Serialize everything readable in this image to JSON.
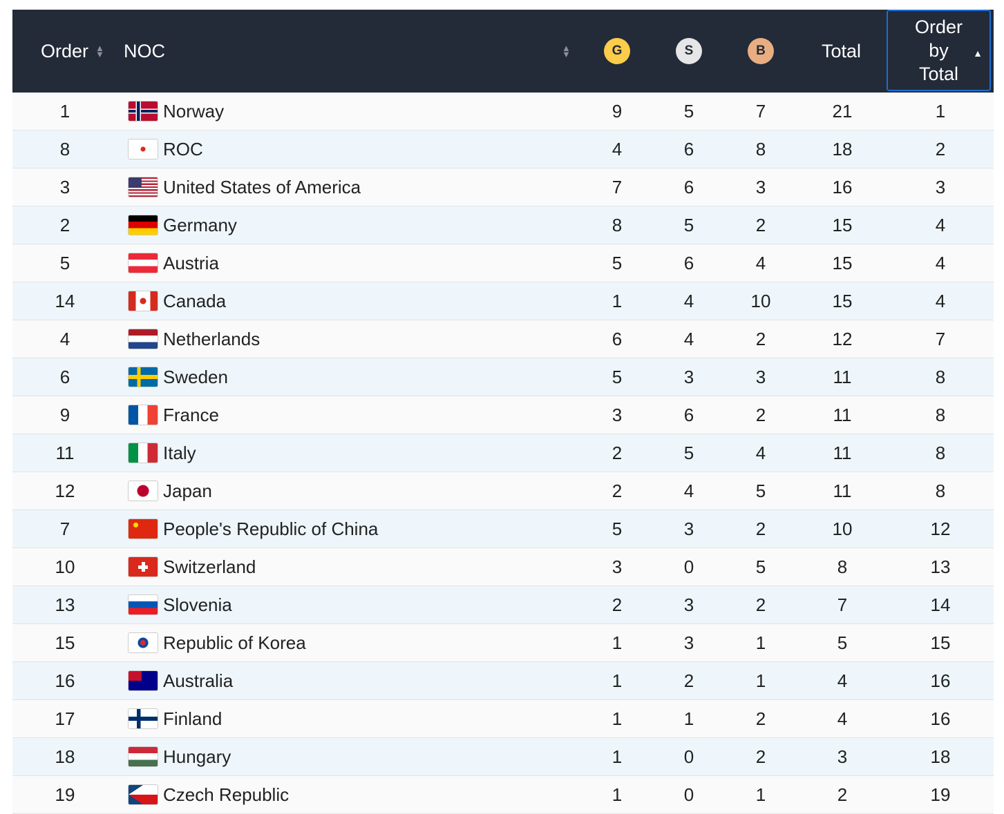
{
  "header": {
    "order_label": "Order",
    "noc_label": "NOC",
    "gold_label": "G",
    "silver_label": "S",
    "bronze_label": "B",
    "total_label": "Total",
    "order_by_total_lines": [
      "Order",
      "by",
      "Total"
    ],
    "sort_icon": "sort-both-icon",
    "active_sort_icon": "sort-ascending-icon"
  },
  "colors": {
    "header_bg": "#232a38",
    "gold": "#fccc4a",
    "silver": "#e6e6e6",
    "bronze": "#e8ae82",
    "active_border": "#1a6fd6"
  },
  "rows": [
    {
      "order": "1",
      "flag": "norway",
      "noc": "Norway",
      "g": "9",
      "s": "5",
      "b": "7",
      "total": "21",
      "rank": "1"
    },
    {
      "order": "8",
      "flag": "roc",
      "noc": "ROC",
      "g": "4",
      "s": "6",
      "b": "8",
      "total": "18",
      "rank": "2"
    },
    {
      "order": "3",
      "flag": "usa",
      "noc": "United States of America",
      "g": "7",
      "s": "6",
      "b": "3",
      "total": "16",
      "rank": "3"
    },
    {
      "order": "2",
      "flag": "germany",
      "noc": "Germany",
      "g": "8",
      "s": "5",
      "b": "2",
      "total": "15",
      "rank": "4"
    },
    {
      "order": "5",
      "flag": "austria",
      "noc": "Austria",
      "g": "5",
      "s": "6",
      "b": "4",
      "total": "15",
      "rank": "4"
    },
    {
      "order": "14",
      "flag": "canada",
      "noc": "Canada",
      "g": "1",
      "s": "4",
      "b": "10",
      "total": "15",
      "rank": "4"
    },
    {
      "order": "4",
      "flag": "netherlands",
      "noc": "Netherlands",
      "g": "6",
      "s": "4",
      "b": "2",
      "total": "12",
      "rank": "7"
    },
    {
      "order": "6",
      "flag": "sweden",
      "noc": "Sweden",
      "g": "5",
      "s": "3",
      "b": "3",
      "total": "11",
      "rank": "8"
    },
    {
      "order": "9",
      "flag": "france",
      "noc": "France",
      "g": "3",
      "s": "6",
      "b": "2",
      "total": "11",
      "rank": "8"
    },
    {
      "order": "11",
      "flag": "italy",
      "noc": "Italy",
      "g": "2",
      "s": "5",
      "b": "4",
      "total": "11",
      "rank": "8"
    },
    {
      "order": "12",
      "flag": "japan",
      "noc": "Japan",
      "g": "2",
      "s": "4",
      "b": "5",
      "total": "11",
      "rank": "8"
    },
    {
      "order": "7",
      "flag": "china",
      "noc": "People's Republic of China",
      "g": "5",
      "s": "3",
      "b": "2",
      "total": "10",
      "rank": "12"
    },
    {
      "order": "10",
      "flag": "switzerland",
      "noc": "Switzerland",
      "g": "3",
      "s": "0",
      "b": "5",
      "total": "8",
      "rank": "13"
    },
    {
      "order": "13",
      "flag": "slovenia",
      "noc": "Slovenia",
      "g": "2",
      "s": "3",
      "b": "2",
      "total": "7",
      "rank": "14"
    },
    {
      "order": "15",
      "flag": "korea",
      "noc": "Republic of Korea",
      "g": "1",
      "s": "3",
      "b": "1",
      "total": "5",
      "rank": "15"
    },
    {
      "order": "16",
      "flag": "australia",
      "noc": "Australia",
      "g": "1",
      "s": "2",
      "b": "1",
      "total": "4",
      "rank": "16"
    },
    {
      "order": "17",
      "flag": "finland",
      "noc": "Finland",
      "g": "1",
      "s": "1",
      "b": "2",
      "total": "4",
      "rank": "16"
    },
    {
      "order": "18",
      "flag": "hungary",
      "noc": "Hungary",
      "g": "1",
      "s": "0",
      "b": "2",
      "total": "3",
      "rank": "18"
    },
    {
      "order": "19",
      "flag": "czech",
      "noc": "Czech Republic",
      "g": "1",
      "s": "0",
      "b": "1",
      "total": "2",
      "rank": "19"
    }
  ]
}
